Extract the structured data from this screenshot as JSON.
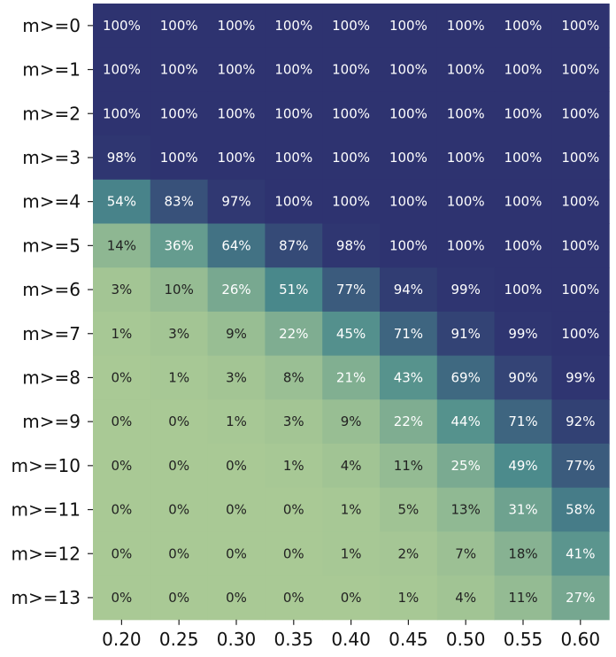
{
  "chart_data": {
    "type": "heatmap",
    "title": "",
    "xlabel": "",
    "ylabel": "",
    "x_categories": [
      "0.20",
      "0.25",
      "0.30",
      "0.35",
      "0.40",
      "0.45",
      "0.50",
      "0.55",
      "0.60"
    ],
    "y_categories": [
      "m>=0",
      "m>=1",
      "m>=2",
      "m>=3",
      "m>=4",
      "m>=5",
      "m>=6",
      "m>=7",
      "m>=8",
      "m>=9",
      "m>=10",
      "m>=11",
      "m>=12",
      "m>=13"
    ],
    "value_format": "percent",
    "values": [
      [
        100,
        100,
        100,
        100,
        100,
        100,
        100,
        100,
        100
      ],
      [
        100,
        100,
        100,
        100,
        100,
        100,
        100,
        100,
        100
      ],
      [
        100,
        100,
        100,
        100,
        100,
        100,
        100,
        100,
        100
      ],
      [
        98,
        100,
        100,
        100,
        100,
        100,
        100,
        100,
        100
      ],
      [
        54,
        83,
        97,
        100,
        100,
        100,
        100,
        100,
        100
      ],
      [
        14,
        36,
        64,
        87,
        98,
        100,
        100,
        100,
        100
      ],
      [
        3,
        10,
        26,
        51,
        77,
        94,
        99,
        100,
        100
      ],
      [
        1,
        3,
        9,
        22,
        45,
        71,
        91,
        99,
        100
      ],
      [
        0,
        1,
        3,
        8,
        21,
        43,
        69,
        90,
        99
      ],
      [
        0,
        0,
        1,
        3,
        9,
        22,
        44,
        71,
        92
      ],
      [
        0,
        0,
        0,
        1,
        4,
        11,
        25,
        49,
        77
      ],
      [
        0,
        0,
        0,
        0,
        1,
        5,
        13,
        31,
        58
      ],
      [
        0,
        0,
        0,
        0,
        1,
        2,
        7,
        18,
        41
      ],
      [
        0,
        0,
        0,
        0,
        0,
        1,
        4,
        11,
        27
      ]
    ],
    "colormap": {
      "low": "#a9c995",
      "mid": "#4a8a8c",
      "high": "#2e3370"
    },
    "label_colors": {
      "dark": "#222222",
      "light": "#ffffff"
    },
    "grid": false,
    "colorbar": false
  }
}
